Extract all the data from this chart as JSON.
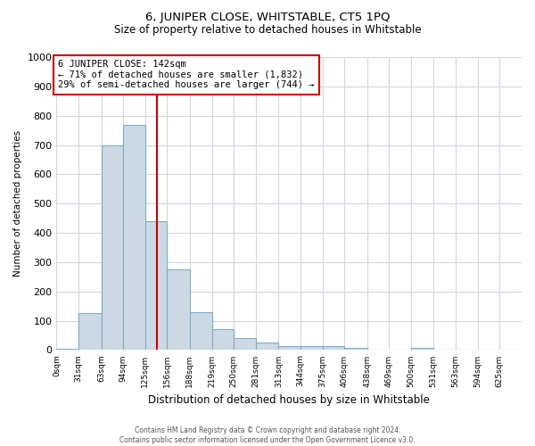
{
  "title": "6, JUNIPER CLOSE, WHITSTABLE, CT5 1PQ",
  "subtitle": "Size of property relative to detached houses in Whitstable",
  "xlabel": "Distribution of detached houses by size in Whitstable",
  "ylabel": "Number of detached properties",
  "bin_labels": [
    "0sqm",
    "31sqm",
    "63sqm",
    "94sqm",
    "125sqm",
    "156sqm",
    "188sqm",
    "219sqm",
    "250sqm",
    "281sqm",
    "313sqm",
    "344sqm",
    "375sqm",
    "406sqm",
    "438sqm",
    "469sqm",
    "500sqm",
    "531sqm",
    "563sqm",
    "594sqm",
    "625sqm"
  ],
  "bin_edges": [
    0,
    31,
    63,
    94,
    125,
    156,
    188,
    219,
    250,
    281,
    313,
    344,
    375,
    406,
    438,
    469,
    500,
    531,
    563,
    594,
    625
  ],
  "bar_heights": [
    5,
    125,
    700,
    770,
    440,
    275,
    130,
    70,
    40,
    25,
    12,
    12,
    12,
    7,
    0,
    0,
    8,
    0,
    0,
    0,
    0
  ],
  "bar_color": "#cdd9e5",
  "bar_edgecolor": "#7aaec8",
  "red_line_x": 142,
  "red_line_color": "#cc0000",
  "ylim": [
    0,
    1000
  ],
  "yticks": [
    0,
    100,
    200,
    300,
    400,
    500,
    600,
    700,
    800,
    900,
    1000
  ],
  "annotation_box_text": "6 JUNIPER CLOSE: 142sqm\n← 71% of detached houses are smaller (1,832)\n29% of semi-detached houses are larger (744) →",
  "annotation_box_color": "#cc0000",
  "footer_line1": "Contains HM Land Registry data © Crown copyright and database right 2024.",
  "footer_line2": "Contains public sector information licensed under the Open Government Licence v3.0.",
  "background_color": "#ffffff",
  "grid_color": "#d0d8e0"
}
